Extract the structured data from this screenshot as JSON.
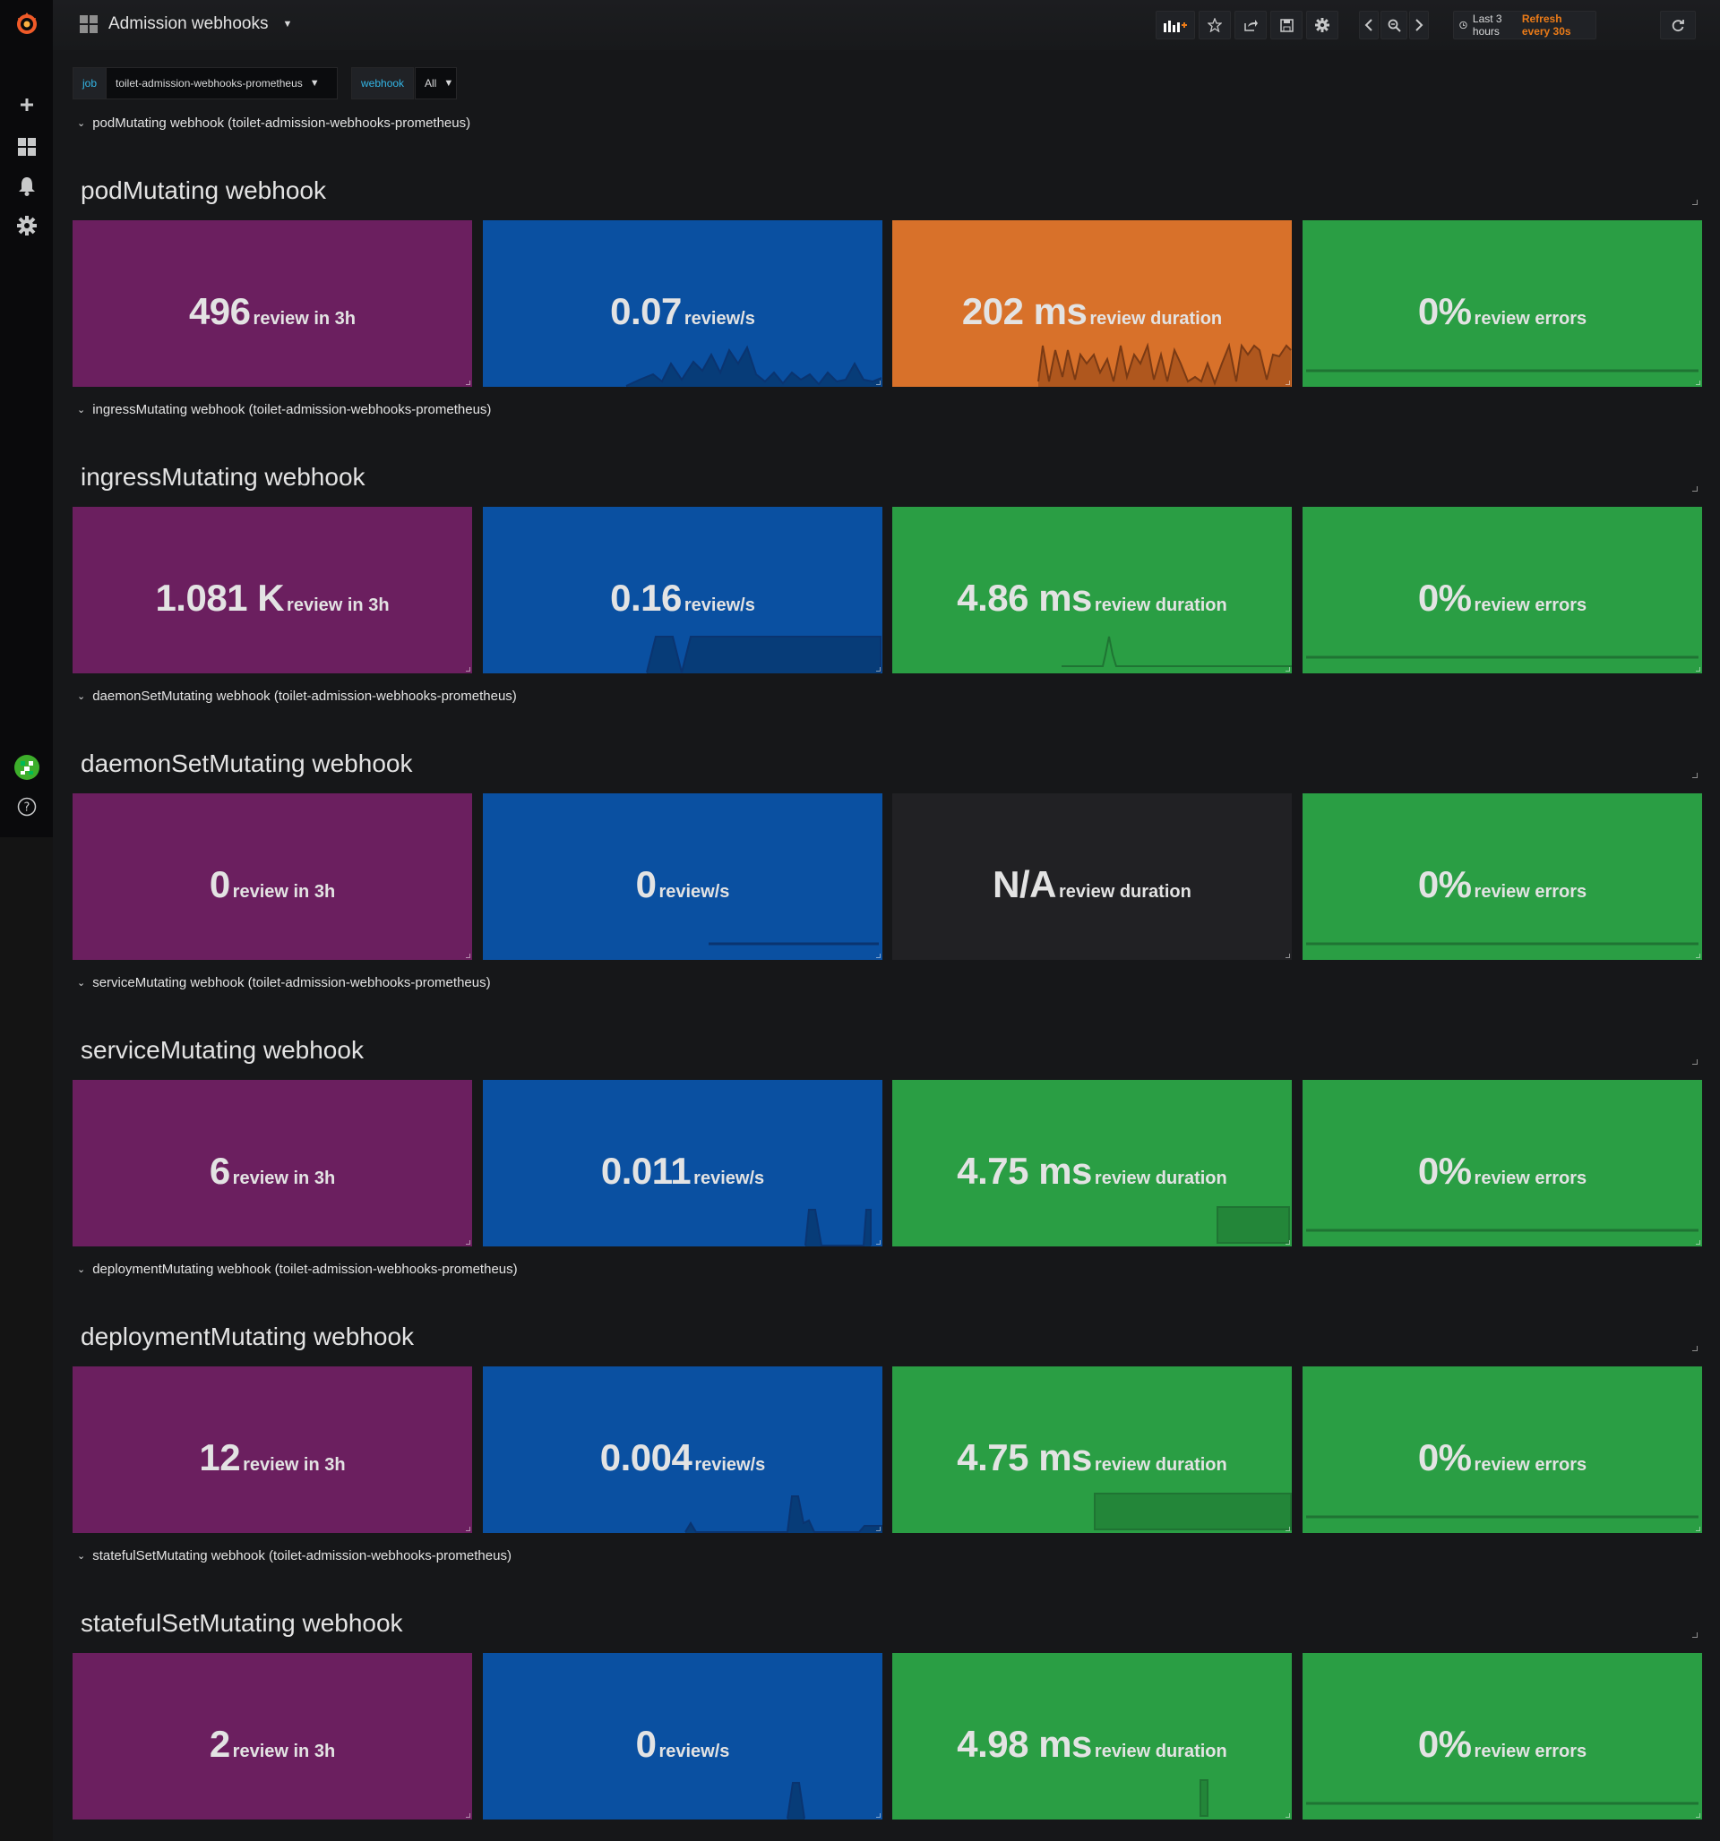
{
  "app": {
    "title": "Admission webhooks"
  },
  "nav": {
    "time_range": "Last 3 hours",
    "refresh": "Refresh every 30s"
  },
  "variables": [
    {
      "label": "job",
      "value": "toilet-admission-webhooks-prometheus"
    },
    {
      "label": "webhook",
      "value": "All"
    }
  ],
  "colors": {
    "count": "#6b1f5f",
    "rate": "#0a50a1",
    "warning": "#d8712a",
    "ok": "#2a9e44",
    "nodata": "#212124"
  },
  "rows": [
    {
      "header": "podMutating webhook (toilet-admission-webhooks-prometheus)",
      "title": "podMutating webhook",
      "stats": [
        {
          "value": "496",
          "unit": "review in 3h",
          "color": "purple"
        },
        {
          "value": "0.07",
          "unit": "review/s",
          "color": "blue"
        },
        {
          "value": "202 ms",
          "unit": "review duration",
          "color": "orange"
        },
        {
          "value": "0%",
          "unit": "review errors",
          "color": "green"
        }
      ]
    },
    {
      "header": "ingressMutating webhook (toilet-admission-webhooks-prometheus)",
      "title": "ingressMutating webhook",
      "stats": [
        {
          "value": "1.081 K",
          "unit": "review in 3h",
          "color": "purple"
        },
        {
          "value": "0.16",
          "unit": "review/s",
          "color": "blue"
        },
        {
          "value": "4.86 ms",
          "unit": "review duration",
          "color": "green"
        },
        {
          "value": "0%",
          "unit": "review errors",
          "color": "green"
        }
      ]
    },
    {
      "header": "daemonSetMutating webhook (toilet-admission-webhooks-prometheus)",
      "title": "daemonSetMutating webhook",
      "stats": [
        {
          "value": "0",
          "unit": "review in 3h",
          "color": "purple"
        },
        {
          "value": "0",
          "unit": "review/s",
          "color": "blue"
        },
        {
          "value": "N/A",
          "unit": "review duration",
          "color": "dark"
        },
        {
          "value": "0%",
          "unit": "review errors",
          "color": "green"
        }
      ]
    },
    {
      "header": "serviceMutating webhook (toilet-admission-webhooks-prometheus)",
      "title": "serviceMutating webhook",
      "stats": [
        {
          "value": "6",
          "unit": "review in 3h",
          "color": "purple"
        },
        {
          "value": "0.011",
          "unit": "review/s",
          "color": "blue"
        },
        {
          "value": "4.75 ms",
          "unit": "review duration",
          "color": "green"
        },
        {
          "value": "0%",
          "unit": "review errors",
          "color": "green"
        }
      ]
    },
    {
      "header": "deploymentMutating webhook (toilet-admission-webhooks-prometheus)",
      "title": "deploymentMutating webhook",
      "stats": [
        {
          "value": "12",
          "unit": "review in 3h",
          "color": "purple"
        },
        {
          "value": "0.004",
          "unit": "review/s",
          "color": "blue"
        },
        {
          "value": "4.75 ms",
          "unit": "review duration",
          "color": "green"
        },
        {
          "value": "0%",
          "unit": "review errors",
          "color": "green"
        }
      ]
    },
    {
      "header": "statefulSetMutating webhook (toilet-admission-webhooks-prometheus)",
      "title": "statefulSetMutating webhook",
      "stats": [
        {
          "value": "2",
          "unit": "review in 3h",
          "color": "purple"
        },
        {
          "value": "0",
          "unit": "review/s",
          "color": "blue"
        },
        {
          "value": "4.98 ms",
          "unit": "review duration",
          "color": "green"
        },
        {
          "value": "0%",
          "unit": "review errors",
          "color": "green"
        }
      ]
    }
  ]
}
